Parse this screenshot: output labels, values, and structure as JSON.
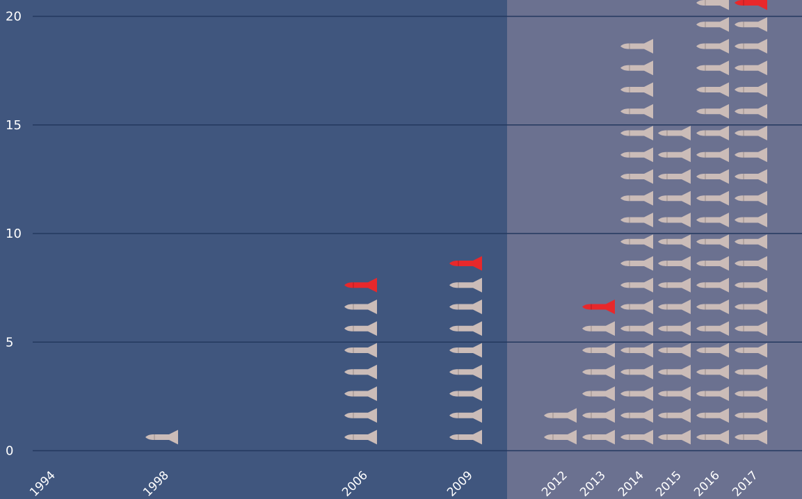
{
  "chart_data": {
    "type": "bar",
    "title": "",
    "xlabel": "",
    "ylabel": "",
    "ylim": [
      0,
      20
    ],
    "y_ticks": [
      "0",
      "5",
      "10",
      "15",
      "20"
    ],
    "grid": true,
    "mark": "missile-icon",
    "categories": [
      "1994",
      "1998",
      "2006",
      "2009",
      "2012",
      "2013",
      "2014",
      "2015",
      "2016",
      "2017"
    ],
    "values": [
      0,
      1,
      8,
      9,
      2,
      7,
      19,
      15,
      21,
      21
    ],
    "highlight_top": [
      false,
      false,
      true,
      true,
      false,
      true,
      false,
      false,
      false,
      true
    ],
    "shaded_region_from": "2012"
  },
  "colors": {
    "background": "#40567e",
    "shaded_background": "#6b7190",
    "gridline": "#23385e",
    "mark": "#cbbcb8",
    "highlight": "#e8282b",
    "text": "#ffffff"
  }
}
